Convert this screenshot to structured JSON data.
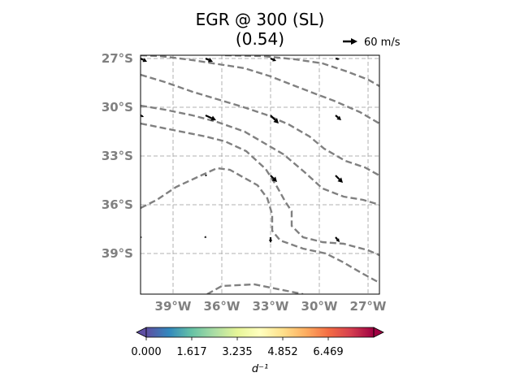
{
  "chart_data": {
    "type": "map",
    "title_line1": "EGR @ 300 (SL)",
    "title_line2": "(0.54)",
    "x_ticks": [
      {
        "value": -39,
        "label": "39°W"
      },
      {
        "value": -36,
        "label": "36°W"
      },
      {
        "value": -33,
        "label": "33°W"
      },
      {
        "value": -30,
        "label": "30°W"
      },
      {
        "value": -27,
        "label": "27°W"
      }
    ],
    "y_ticks": [
      {
        "value": -27,
        "label": "27°S"
      },
      {
        "value": -30,
        "label": "30°S"
      },
      {
        "value": -33,
        "label": "33°S"
      },
      {
        "value": -36,
        "label": "36°S"
      },
      {
        "value": -39,
        "label": "39°S"
      }
    ],
    "xlim": [
      -41,
      -26.3
    ],
    "ylim": [
      -41.5,
      -26.8
    ],
    "grid": true,
    "quiver_key": {
      "label": "60 m/s",
      "speed": 60
    },
    "colorbar": {
      "ticks": [
        "0.000",
        "1.617",
        "3.235",
        "4.852",
        "6.469"
      ],
      "range": [
        0,
        8.086
      ],
      "label": "d⁻¹",
      "colormap": "Spectral_r"
    },
    "contours": [
      [
        [
          -36.9,
          -41.5
        ],
        [
          -36.0,
          -41.0
        ],
        [
          -34.0,
          -40.9
        ],
        [
          -31.0,
          -41.5
        ]
      ],
      [
        [
          -41,
          -36.2
        ],
        [
          -40.0,
          -35.7
        ],
        [
          -38.8,
          -34.9
        ],
        [
          -37.5,
          -34.3
        ],
        [
          -36.3,
          -33.75
        ],
        [
          -35.5,
          -33.85
        ],
        [
          -34.7,
          -34.3
        ],
        [
          -33.8,
          -34.8
        ],
        [
          -33.2,
          -35.6
        ],
        [
          -32.9,
          -36.6
        ],
        [
          -32.9,
          -37.6
        ],
        [
          -32.4,
          -38.2
        ],
        [
          -31.0,
          -38.7
        ],
        [
          -29.6,
          -39.0
        ],
        [
          -28.6,
          -39.5
        ],
        [
          -27.4,
          -40.2
        ],
        [
          -26.3,
          -40.8
        ]
      ],
      [
        [
          -41,
          -31.0
        ],
        [
          -39.0,
          -31.4
        ],
        [
          -37.0,
          -31.8
        ],
        [
          -35.8,
          -32.1
        ],
        [
          -34.5,
          -32.7
        ],
        [
          -33.3,
          -33.8
        ],
        [
          -32.6,
          -34.9
        ],
        [
          -32.1,
          -35.8
        ],
        [
          -31.7,
          -36.4
        ],
        [
          -31.7,
          -37.3
        ],
        [
          -31.0,
          -38.0
        ],
        [
          -29.8,
          -38.3
        ],
        [
          -28.5,
          -38.4
        ],
        [
          -27.0,
          -38.8
        ],
        [
          -26.3,
          -39.1
        ]
      ],
      [
        [
          -41,
          -29.9
        ],
        [
          -39.5,
          -30.15
        ],
        [
          -37.8,
          -30.5
        ],
        [
          -36.3,
          -30.9
        ],
        [
          -34.6,
          -31.5
        ],
        [
          -33.4,
          -32.2
        ],
        [
          -32.2,
          -32.9
        ],
        [
          -30.9,
          -34.0
        ],
        [
          -29.8,
          -35.0
        ],
        [
          -28.5,
          -35.5
        ],
        [
          -27.3,
          -35.7
        ],
        [
          -26.3,
          -36.0
        ]
      ],
      [
        [
          -41,
          -28.0
        ],
        [
          -39.5,
          -28.45
        ],
        [
          -37.8,
          -29.05
        ],
        [
          -36.3,
          -29.5
        ],
        [
          -34.8,
          -29.95
        ],
        [
          -33.3,
          -30.45
        ],
        [
          -31.9,
          -31.05
        ],
        [
          -30.6,
          -31.8
        ],
        [
          -29.7,
          -32.55
        ],
        [
          -28.4,
          -33.3
        ],
        [
          -27.2,
          -33.7
        ],
        [
          -26.3,
          -34.2
        ]
      ],
      [
        [
          -41,
          -26.8
        ],
        [
          -39.8,
          -26.85
        ],
        [
          -37.8,
          -27.1
        ],
        [
          -36.2,
          -27.35
        ],
        [
          -34.6,
          -27.6
        ],
        [
          -33.0,
          -28.1
        ],
        [
          -31.6,
          -28.65
        ],
        [
          -30.3,
          -29.15
        ],
        [
          -29.1,
          -29.6
        ],
        [
          -27.5,
          -30.3
        ],
        [
          -26.3,
          -31.0
        ]
      ],
      [
        [
          -35.8,
          -26.8
        ],
        [
          -33.5,
          -26.85
        ],
        [
          -31.5,
          -27.05
        ],
        [
          -29.8,
          -27.3
        ],
        [
          -28.3,
          -27.8
        ],
        [
          -27.0,
          -28.3
        ],
        [
          -26.3,
          -28.7
        ]
      ]
    ],
    "vectors": [
      {
        "lon": -41,
        "lat": -27,
        "u": 8,
        "v": -4
      },
      {
        "lon": -37,
        "lat": -27,
        "u": 9,
        "v": -4
      },
      {
        "lon": -33,
        "lat": -27,
        "u": 7,
        "v": -3
      },
      {
        "lon": -29,
        "lat": -27,
        "u": 5,
        "v": -1
      },
      {
        "lon": -41,
        "lat": -30.5,
        "u": 4,
        "v": -2
      },
      {
        "lon": -37,
        "lat": -30.5,
        "u": 13,
        "v": -6
      },
      {
        "lon": -33,
        "lat": -30.5,
        "u": 10,
        "v": -10
      },
      {
        "lon": -29,
        "lat": -30.5,
        "u": 7,
        "v": -6
      },
      {
        "lon": -37,
        "lat": -34.2,
        "u": 2,
        "v": 1
      },
      {
        "lon": -33,
        "lat": -34.2,
        "u": 8,
        "v": -8
      },
      {
        "lon": -29,
        "lat": -34.2,
        "u": 9,
        "v": -9
      },
      {
        "lon": -41,
        "lat": -38,
        "u": 2,
        "v": 0
      },
      {
        "lon": -37,
        "lat": -38,
        "u": 1,
        "v": -1
      },
      {
        "lon": -33,
        "lat": -38,
        "u": 0,
        "v": -7
      },
      {
        "lon": -29,
        "lat": -38,
        "u": 5,
        "v": -6
      }
    ]
  }
}
